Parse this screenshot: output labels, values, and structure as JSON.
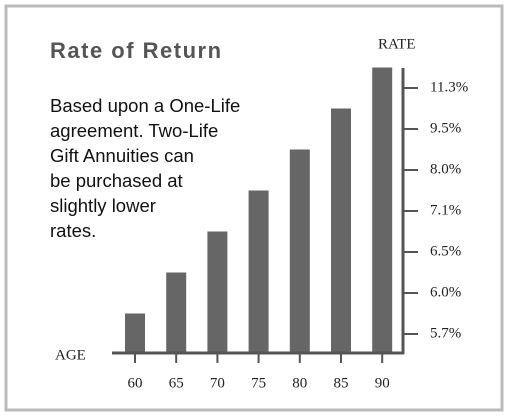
{
  "chart_data": {
    "type": "bar",
    "title": "Rate of Return",
    "y_axis_label": "RATE",
    "x_axis_label": "AGE",
    "annotation": [
      "Based upon a One-Life",
      "agreement. Two-Life",
      "Gift Annuities can",
      "be purchased at",
      "slightly lower",
      "rates."
    ],
    "categories": [
      "60",
      "65",
      "70",
      "75",
      "80",
      "85",
      "90"
    ],
    "values": [
      5.7,
      6.0,
      6.5,
      7.1,
      8.0,
      9.5,
      11.3
    ],
    "color": "#666666",
    "yticks": [
      {
        "value": 5.7,
        "label": "5.7%"
      },
      {
        "value": 6.0,
        "label": "6.0%"
      },
      {
        "value": 6.5,
        "label": "6.5%"
      },
      {
        "value": 7.1,
        "label": "7.1%"
      },
      {
        "value": 8.0,
        "label": "8.0%"
      },
      {
        "value": 9.5,
        "label": "9.5%"
      },
      {
        "value": 11.3,
        "label": "11.3%"
      }
    ]
  }
}
